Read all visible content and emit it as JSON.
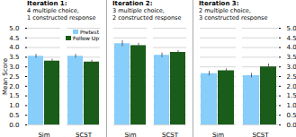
{
  "chart_data": [
    {
      "type": "bar",
      "title": "Iteration 1:",
      "subtitle": "4 multiple choice,\n1 constructed response",
      "ylabel": "Mean Score",
      "categories": [
        "Sim",
        "SCST"
      ],
      "series": [
        {
          "name": "Pretest",
          "color": "#87CEFA",
          "values": [
            3.55,
            3.55
          ],
          "errors": [
            0.1,
            0.1
          ]
        },
        {
          "name": "Follow Up",
          "color": "#1a5c1a",
          "values": [
            3.3,
            3.25
          ],
          "errors": [
            0.1,
            0.1
          ]
        }
      ],
      "ylim": [
        0,
        5
      ],
      "yticks": [
        {
          "value": 0,
          "label": "0.0"
        },
        0.5,
        {
          "value": 1,
          "label": "1.0"
        },
        1.5,
        {
          "value": 2,
          "label": "2.0"
        },
        2.5,
        {
          "value": 3,
          "label": "3.0"
        },
        3.5,
        {
          "value": 4,
          "label": "4.0"
        },
        4.5,
        {
          "value": 5,
          "label": "5.0"
        }
      ],
      "grid": true,
      "legend": "upper right"
    },
    {
      "type": "bar",
      "title": "Iteration 2:",
      "subtitle": "3 multiple choice,\n2 constructed response",
      "categories": [
        "Sim",
        "SCST"
      ],
      "series": [
        {
          "name": "Pretest",
          "color": "#87CEFA",
          "values": [
            4.2,
            3.6
          ],
          "errors": [
            0.15,
            0.12
          ]
        },
        {
          "name": "Follow Up",
          "color": "#1a5c1a",
          "values": [
            4.1,
            3.75
          ],
          "errors": [
            0.12,
            0.1
          ]
        }
      ],
      "ylim": [
        0,
        5
      ],
      "yticks": [
        {
          "value": 0,
          "label": "0.0"
        },
        0.5,
        {
          "value": 1,
          "label": "1.0"
        },
        1.5,
        {
          "value": 2,
          "label": "2.0"
        },
        2.5,
        {
          "value": 3,
          "label": "3.0"
        },
        3.5,
        {
          "value": 4,
          "label": "4.0"
        },
        4.5,
        {
          "value": 5,
          "label": "5.0"
        }
      ],
      "grid": true,
      "tick_labels": "x"
    },
    {
      "type": "bar",
      "title": "Iteration 3:",
      "subtitle": "2 multiple choice,\n3 constructed response",
      "categories": [
        "Sim",
        "SCST"
      ],
      "series": [
        {
          "name": "Pretest",
          "color": "#87CEFA",
          "values": [
            2.65,
            2.55
          ],
          "errors": [
            0.12,
            0.12
          ]
        },
        {
          "name": "Follow Up",
          "color": "#1a5c1a",
          "values": [
            2.8,
            3.0
          ],
          "errors": [
            0.1,
            0.15
          ]
        }
      ],
      "ylim": [
        0,
        5
      ],
      "yticks": [
        {
          "value": 0,
          "label": "0.0"
        },
        0.5,
        {
          "value": 1,
          "label": "1.0"
        },
        1.5,
        {
          "value": 2,
          "label": "2.0"
        },
        2.5,
        {
          "value": 3,
          "label": "3.0"
        },
        3.5,
        {
          "value": 4,
          "label": "4.0"
        },
        4.5,
        {
          "value": 5,
          "label": "5.0"
        }
      ],
      "grid": true
    }
  ]
}
